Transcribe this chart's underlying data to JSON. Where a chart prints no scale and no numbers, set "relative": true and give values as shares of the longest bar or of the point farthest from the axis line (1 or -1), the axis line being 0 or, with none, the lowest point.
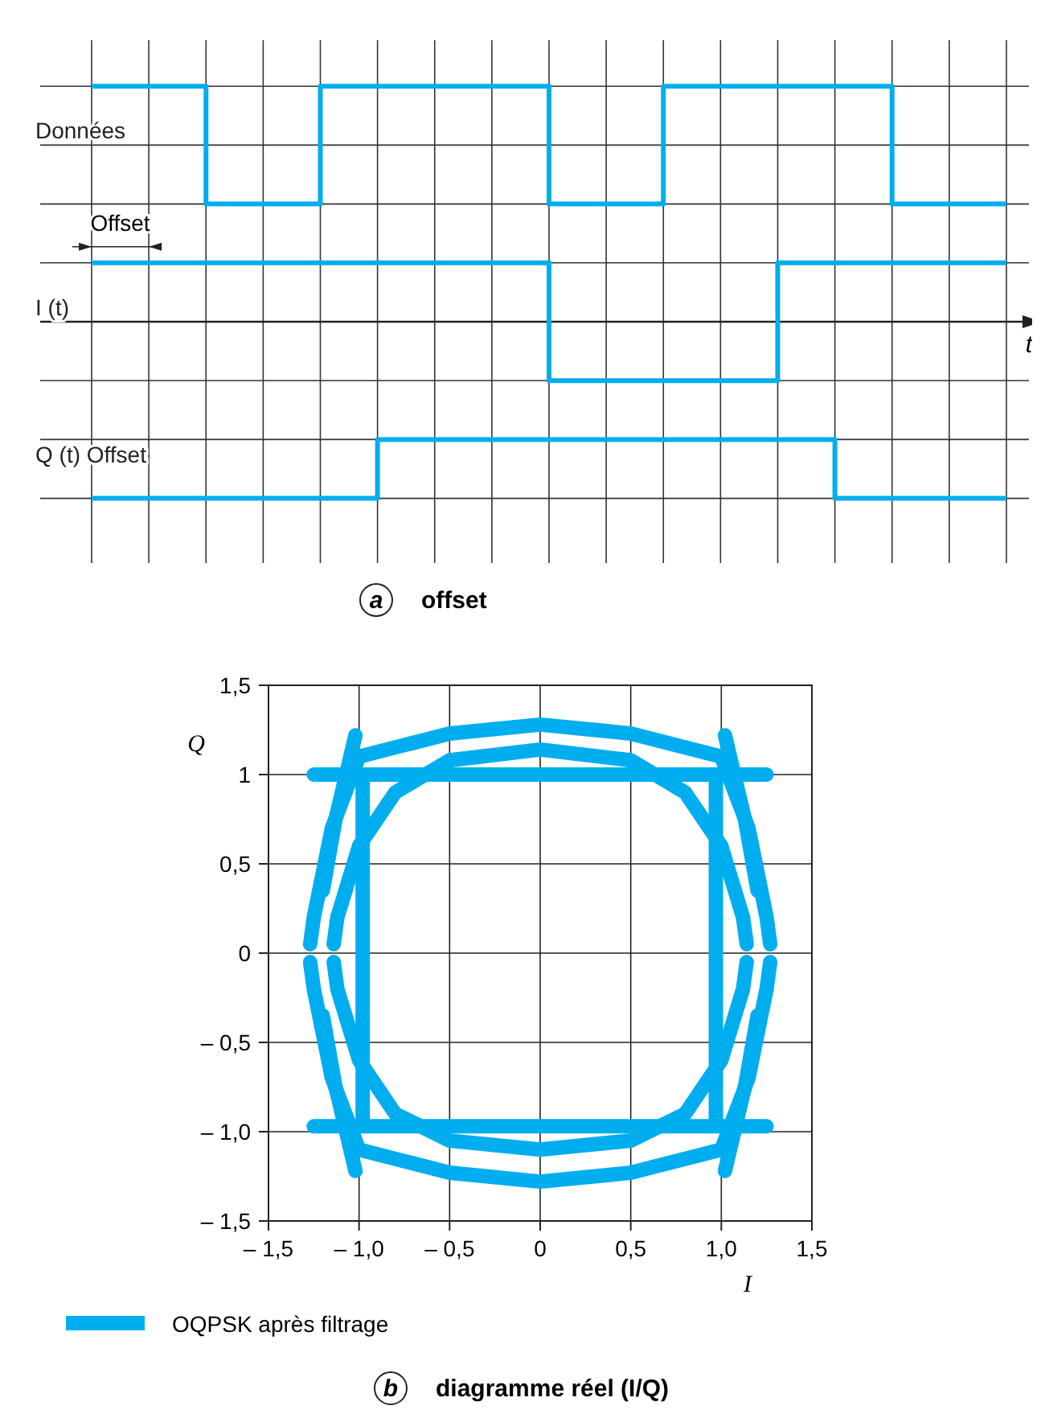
{
  "chart_data": [
    {
      "type": "step",
      "title": "a offset",
      "xlabel": "t",
      "relative": true,
      "grid": true,
      "annotations": [
        "Offset"
      ],
      "categories": [
        null,
        null,
        null,
        null,
        null,
        null,
        null,
        null,
        null,
        null,
        null,
        null,
        null,
        null,
        null,
        null,
        null
      ],
      "series": [
        {
          "name": "Données",
          "color": "#00aeef",
          "values": [
            1,
            1,
            0.5,
            0.5,
            1,
            1,
            1,
            1,
            0.5,
            0.5,
            1,
            1,
            1,
            1,
            0.5,
            0.5,
            0.5
          ]
        },
        {
          "name": "I (t)",
          "color": "#00aeef",
          "values": [
            0.25,
            0.25,
            0.25,
            0.25,
            0.25,
            0.25,
            0.25,
            0.25,
            -0.25,
            -0.25,
            -0.25,
            -0.25,
            0.25,
            0.25,
            0.25,
            0.25,
            0.25
          ]
        },
        {
          "name": "Q (t) Offset",
          "color": "#00aeef",
          "values": [
            -0.75,
            -0.75,
            -0.75,
            -0.75,
            -0.75,
            -0.5,
            -0.5,
            -0.5,
            -0.5,
            -0.5,
            -0.5,
            -0.5,
            -0.5,
            -0.75,
            -0.75,
            -0.75,
            -0.75
          ]
        }
      ]
    },
    {
      "type": "line",
      "title": "b diagramme réel (I/Q)",
      "xlabel": "I",
      "ylabel": "Q",
      "grid": true,
      "legend": "bottom left",
      "xlim": [
        -1.5,
        1.5
      ],
      "ylim": [
        -1.5,
        1.5
      ],
      "xticks": [
        {
          "value": -1.5,
          "label": "– 1,5"
        },
        {
          "value": -1,
          "label": "– 1,0"
        },
        {
          "value": -0.5,
          "label": "– 0,5"
        },
        0,
        {
          "value": 0.5,
          "label": "0,5"
        },
        {
          "value": 1,
          "label": "1,0"
        },
        {
          "value": 1.5,
          "label": "1,5"
        }
      ],
      "yticks": [
        {
          "value": -1.5,
          "label": "– 1,5"
        },
        {
          "value": -1,
          "label": "– 1,0"
        },
        {
          "value": -0.5,
          "label": "– 0,5"
        },
        0,
        {
          "value": 0.5,
          "label": "0,5"
        },
        1,
        {
          "value": 1.5,
          "label": "1,5"
        }
      ],
      "series": [
        {
          "name": "OQPSK après filtrage",
          "color": "#00aeef",
          "x": [
            -1.27,
            -1.25,
            -1.15,
            -1.0,
            -0.5,
            0,
            0.5,
            1.0,
            1.15,
            1.25,
            1.27
          ],
          "values": [
            0.05,
            0.2,
            0.7,
            1.1,
            1.23,
            1.28,
            1.23,
            1.1,
            0.7,
            0.2,
            0.05
          ]
        },
        {
          "color": "#00aeef",
          "x": [
            -1.27,
            -1.25,
            -1.15,
            -1.0,
            -0.5,
            0,
            0.5,
            1.0,
            1.15,
            1.25,
            1.27
          ],
          "values": [
            -0.05,
            -0.2,
            -0.7,
            -1.1,
            -1.23,
            -1.28,
            -1.23,
            -1.1,
            -0.7,
            -0.2,
            -0.05
          ]
        },
        {
          "color": "#00aeef",
          "x": [
            -1.14,
            -1.12,
            -1.0,
            -0.8,
            -0.5,
            0,
            0.5,
            0.8,
            1.0,
            1.12,
            1.14
          ],
          "values": [
            0.05,
            0.2,
            0.6,
            0.9,
            1.08,
            1.14,
            1.08,
            0.9,
            0.6,
            0.2,
            0.05
          ]
        },
        {
          "color": "#00aeef",
          "x": [
            -1.14,
            -1.12,
            -1.0,
            -0.8,
            -0.5,
            0,
            0.5,
            0.8,
            1.0,
            1.12,
            1.14
          ],
          "values": [
            -0.05,
            -0.2,
            -0.6,
            -0.9,
            -1.05,
            -1.1,
            -1.05,
            -0.9,
            -0.6,
            -0.2,
            -0.05
          ]
        },
        {
          "color": "#00aeef",
          "x": [
            -1.25,
            1.25
          ],
          "values": [
            1.0,
            1.0
          ]
        },
        {
          "color": "#00aeef",
          "x": [
            -1.25,
            1.25
          ],
          "values": [
            -0.97,
            -0.97
          ]
        },
        {
          "color": "#00aeef",
          "x": [
            -0.98,
            -0.98
          ],
          "values": [
            1.0,
            -0.97
          ]
        },
        {
          "color": "#00aeef",
          "x": [
            0.97,
            0.97
          ],
          "values": [
            1.0,
            -0.97
          ]
        },
        {
          "color": "#00aeef",
          "x": [
            -1.2,
            -1.13,
            -1.02
          ],
          "values": [
            0.35,
            0.75,
            1.22
          ]
        },
        {
          "color": "#00aeef",
          "x": [
            -1.2,
            -1.13,
            -1.02
          ],
          "values": [
            -0.35,
            -0.75,
            -1.22
          ]
        },
        {
          "color": "#00aeef",
          "x": [
            1.02,
            1.13,
            1.2
          ],
          "values": [
            1.22,
            0.75,
            0.35
          ]
        },
        {
          "color": "#00aeef",
          "x": [
            1.02,
            1.13,
            1.2
          ],
          "values": [
            -1.22,
            -0.75,
            -0.35
          ]
        }
      ]
    }
  ]
}
